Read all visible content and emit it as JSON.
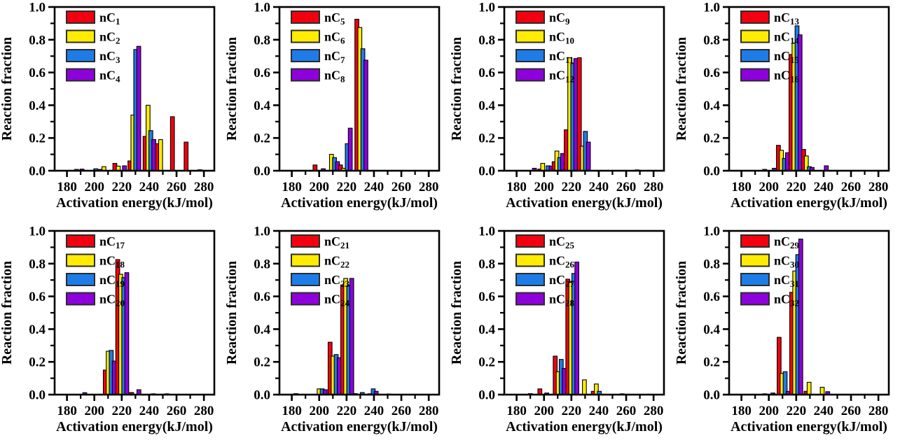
{
  "figure": {
    "background": "#ffffff",
    "rows": 2,
    "cols": 4
  },
  "colors": {
    "series": [
      "#f2000f",
      "#ffec00",
      "#1e7ce8",
      "#8e00dc"
    ],
    "bar_outline": "#000000",
    "legend_swatch_border": "#2b2b2b",
    "axis": "#000000"
  },
  "axes": {
    "xlabel": "Activation energy(kJ/mol)",
    "ylabel": "Reaction fraction",
    "xticks": [
      180,
      200,
      220,
      240,
      260,
      280
    ],
    "xminorticks": [
      190,
      210,
      230,
      250,
      270
    ],
    "ytick_labels": [
      "0.0",
      "0.2",
      "0.4",
      "0.6",
      "0.8",
      "1.0"
    ],
    "yticks": [
      0,
      0.2,
      0.4,
      0.6,
      0.8,
      1.0
    ],
    "yminorticks": [
      0.1,
      0.3,
      0.5,
      0.7,
      0.9
    ],
    "xlim": [
      171,
      287.6
    ],
    "ylim": [
      0,
      1.0
    ],
    "grid": false,
    "legend_position": "top-left-inside"
  },
  "chart_data": [
    {
      "type": "bar",
      "name": "nC1-nC4",
      "xlabel": "Activation energy(kJ/mol)",
      "ylabel": "Reaction fraction",
      "legend": [
        {
          "label": "nC1",
          "base": "nC",
          "sub": "1"
        },
        {
          "label": "nC2",
          "base": "nC",
          "sub": "2"
        },
        {
          "label": "nC3",
          "base": "nC",
          "sub": "3"
        },
        {
          "label": "nC4",
          "base": "nC",
          "sub": "4"
        }
      ],
      "bars": [
        [
          1,
          187,
          0.008
        ],
        [
          3,
          191,
          0.01
        ],
        [
          2,
          201,
          0.012
        ],
        [
          0,
          204.5,
          0.008
        ],
        [
          1,
          207,
          0.025
        ],
        [
          0,
          215,
          0.045
        ],
        [
          1,
          217.5,
          0.028
        ],
        [
          3,
          222,
          0.03
        ],
        [
          0,
          226,
          0.06
        ],
        [
          1,
          228.2,
          0.34
        ],
        [
          2,
          230.2,
          0.74
        ],
        [
          3,
          232.4,
          0.76
        ],
        [
          0,
          237,
          0.21
        ],
        [
          1,
          239.2,
          0.4
        ],
        [
          2,
          241.2,
          0.245
        ],
        [
          3,
          243.4,
          0.19
        ],
        [
          0,
          246.2,
          0.165
        ],
        [
          1,
          248.4,
          0.19
        ],
        [
          0,
          257,
          0.33
        ],
        [
          0,
          267,
          0.175
        ],
        [
          0,
          277,
          0.006
        ]
      ]
    },
    {
      "type": "bar",
      "name": "nC5-nC8",
      "xlabel": "Activation energy(kJ/mol)",
      "ylabel": "Reaction fraction",
      "legend": [
        {
          "label": "nC5",
          "base": "nC",
          "sub": "5"
        },
        {
          "label": "nC6",
          "base": "nC",
          "sub": "6"
        },
        {
          "label": "nC7",
          "base": "nC",
          "sub": "7"
        },
        {
          "label": "nC8",
          "base": "nC",
          "sub": "8"
        }
      ],
      "bars": [
        [
          0,
          197,
          0.035
        ],
        [
          3,
          203,
          0.012
        ],
        [
          1,
          209,
          0.1
        ],
        [
          2,
          211.2,
          0.08
        ],
        [
          3,
          213.4,
          0.055
        ],
        [
          0,
          215.6,
          0.035
        ],
        [
          1,
          217.8,
          0.015
        ],
        [
          2,
          220.5,
          0.165
        ],
        [
          3,
          222.7,
          0.26
        ],
        [
          0,
          227.5,
          0.925
        ],
        [
          1,
          229.7,
          0.875
        ],
        [
          2,
          231.9,
          0.745
        ],
        [
          3,
          234.1,
          0.675
        ]
      ]
    },
    {
      "type": "bar",
      "name": "nC9-nC12",
      "xlabel": "Activation energy(kJ/mol)",
      "ylabel": "Reaction fraction",
      "legend": [
        {
          "label": "nC9",
          "base": "nC",
          "sub": "9"
        },
        {
          "label": "nC10",
          "base": "nC",
          "sub": "10"
        },
        {
          "label": "nC11",
          "base": "nC",
          "sub": "11"
        },
        {
          "label": "nC12",
          "base": "nC",
          "sub": "12"
        }
      ],
      "bars": [
        [
          3,
          193,
          0.015
        ],
        [
          0,
          197,
          0.01
        ],
        [
          1,
          199,
          0.045
        ],
        [
          2,
          203,
          0.03
        ],
        [
          3,
          205.2,
          0.028
        ],
        [
          0,
          207.4,
          0.055
        ],
        [
          1,
          209.4,
          0.12
        ],
        [
          2,
          211.5,
          0.08
        ],
        [
          3,
          213.6,
          0.105
        ],
        [
          0,
          216.2,
          0.25
        ],
        [
          1,
          218.8,
          0.69
        ],
        [
          2,
          221,
          0.655
        ],
        [
          3,
          223.2,
          0.685
        ],
        [
          0,
          225.8,
          0.69
        ],
        [
          1,
          228.2,
          0.15
        ],
        [
          2,
          230.2,
          0.24
        ],
        [
          3,
          232.4,
          0.175
        ],
        [
          0,
          268,
          0.005
        ]
      ]
    },
    {
      "type": "bar",
      "name": "nC13-nC16",
      "xlabel": "Activation energy(kJ/mol)",
      "ylabel": "Reaction fraction",
      "legend": [
        {
          "label": "nC13",
          "base": "nC",
          "sub": "13"
        },
        {
          "label": "nC14",
          "base": "nC",
          "sub": "14"
        },
        {
          "label": "nC15",
          "base": "nC",
          "sub": "15"
        },
        {
          "label": "nC16",
          "base": "nC",
          "sub": "16"
        }
      ],
      "bars": [
        [
          0,
          197,
          0.008
        ],
        [
          3,
          204,
          0.015
        ],
        [
          0,
          207,
          0.155
        ],
        [
          1,
          209.2,
          0.125
        ],
        [
          2,
          211.4,
          0.075
        ],
        [
          3,
          213.6,
          0.11
        ],
        [
          0,
          216.2,
          0.71
        ],
        [
          1,
          218.4,
          0.78
        ],
        [
          2,
          220.6,
          0.885
        ],
        [
          3,
          222.8,
          0.83
        ],
        [
          0,
          225.4,
          0.13
        ],
        [
          1,
          227.4,
          0.09
        ],
        [
          2,
          229.6,
          0.025
        ],
        [
          3,
          231.6,
          0.02
        ],
        [
          3,
          242,
          0.03
        ]
      ]
    },
    {
      "type": "bar",
      "name": "nC17-nC20",
      "xlabel": "Activation energy(kJ/mol)",
      "ylabel": "Reaction fraction",
      "legend": [
        {
          "label": "nC17",
          "base": "nC",
          "sub": "17"
        },
        {
          "label": "nC18",
          "base": "nC",
          "sub": "18"
        },
        {
          "label": "nC19",
          "base": "nC",
          "sub": "19"
        },
        {
          "label": "nC20",
          "base": "nC",
          "sub": "20"
        }
      ],
      "bars": [
        [
          3,
          193,
          0.012
        ],
        [
          0,
          208,
          0.15
        ],
        [
          1,
          210.1,
          0.265
        ],
        [
          2,
          212.3,
          0.27
        ],
        [
          3,
          214.5,
          0.205
        ],
        [
          0,
          217.1,
          0.825
        ],
        [
          1,
          219.3,
          0.735
        ],
        [
          2,
          221.5,
          0.715
        ],
        [
          3,
          223.7,
          0.745
        ],
        [
          0,
          227.2,
          0.013
        ],
        [
          3,
          232.5,
          0.03
        ],
        [
          0,
          243,
          0.005
        ],
        [
          0,
          253,
          0.005
        ]
      ]
    },
    {
      "type": "bar",
      "name": "nC21-nC24",
      "xlabel": "Activation energy(kJ/mol)",
      "ylabel": "Reaction fraction",
      "legend": [
        {
          "label": "nC21",
          "base": "nC",
          "sub": "21"
        },
        {
          "label": "nC22",
          "base": "nC",
          "sub": "22"
        },
        {
          "label": "nC23",
          "base": "nC",
          "sub": "23"
        },
        {
          "label": "nC24",
          "base": "nC",
          "sub": "24"
        }
      ],
      "bars": [
        [
          0,
          183,
          0.006
        ],
        [
          1,
          200,
          0.035
        ],
        [
          2,
          202.2,
          0.035
        ],
        [
          3,
          204.4,
          0.03
        ],
        [
          0,
          208,
          0.32
        ],
        [
          1,
          210.2,
          0.235
        ],
        [
          2,
          212.4,
          0.245
        ],
        [
          3,
          214.6,
          0.225
        ],
        [
          0,
          217.2,
          0.67
        ],
        [
          1,
          219.4,
          0.71
        ],
        [
          2,
          221.6,
          0.665
        ],
        [
          3,
          223.8,
          0.71
        ],
        [
          0,
          226.4,
          0.006
        ],
        [
          2,
          231.5,
          0.013
        ],
        [
          0,
          237,
          0.005
        ],
        [
          2,
          239.5,
          0.035
        ],
        [
          3,
          241.6,
          0.02
        ],
        [
          0,
          251,
          0.004
        ]
      ]
    },
    {
      "type": "bar",
      "name": "nC25-nC28",
      "xlabel": "Activation energy(kJ/mol)",
      "ylabel": "Reaction fraction",
      "legend": [
        {
          "label": "nC25",
          "base": "nC",
          "sub": "25"
        },
        {
          "label": "nC26",
          "base": "nC",
          "sub": "26"
        },
        {
          "label": "nC27",
          "base": "nC",
          "sub": "27"
        },
        {
          "label": "nC28",
          "base": "nC",
          "sub": "28"
        }
      ],
      "bars": [
        [
          0,
          190,
          0.006
        ],
        [
          0,
          197,
          0.035
        ],
        [
          3,
          202,
          0.01
        ],
        [
          0,
          208.2,
          0.235
        ],
        [
          1,
          210.4,
          0.14
        ],
        [
          2,
          212.6,
          0.215
        ],
        [
          3,
          214.8,
          0.16
        ],
        [
          0,
          217.4,
          0.705
        ],
        [
          1,
          219.6,
          0.685
        ],
        [
          2,
          221.8,
          0.74
        ],
        [
          3,
          224,
          0.81
        ],
        [
          1,
          229.5,
          0.09
        ],
        [
          0,
          236,
          0.02
        ],
        [
          1,
          238.2,
          0.065
        ],
        [
          2,
          240.4,
          0.02
        ],
        [
          0,
          257,
          0.005
        ]
      ]
    },
    {
      "type": "bar",
      "name": "nC29-nC32",
      "xlabel": "Activation energy(kJ/mol)",
      "ylabel": "Reaction fraction",
      "legend": [
        {
          "label": "nC29",
          "base": "nC",
          "sub": "29"
        },
        {
          "label": "nC30",
          "base": "nC",
          "sub": "30"
        },
        {
          "label": "nC31",
          "base": "nC",
          "sub": "31"
        },
        {
          "label": "nC32",
          "base": "nC",
          "sub": "32"
        }
      ],
      "bars": [
        [
          0,
          197,
          0.005
        ],
        [
          3,
          203,
          0.01
        ],
        [
          0,
          207.5,
          0.35
        ],
        [
          1,
          209.7,
          0.13
        ],
        [
          2,
          211.9,
          0.14
        ],
        [
          3,
          214.1,
          0.02
        ],
        [
          0,
          216.7,
          0.625
        ],
        [
          1,
          218.9,
          0.755
        ],
        [
          2,
          221.1,
          0.855
        ],
        [
          3,
          223.3,
          0.95
        ],
        [
          0,
          227.2,
          0.02
        ],
        [
          1,
          229.4,
          0.075
        ],
        [
          1,
          239,
          0.045
        ],
        [
          3,
          243,
          0.018
        ]
      ]
    }
  ]
}
